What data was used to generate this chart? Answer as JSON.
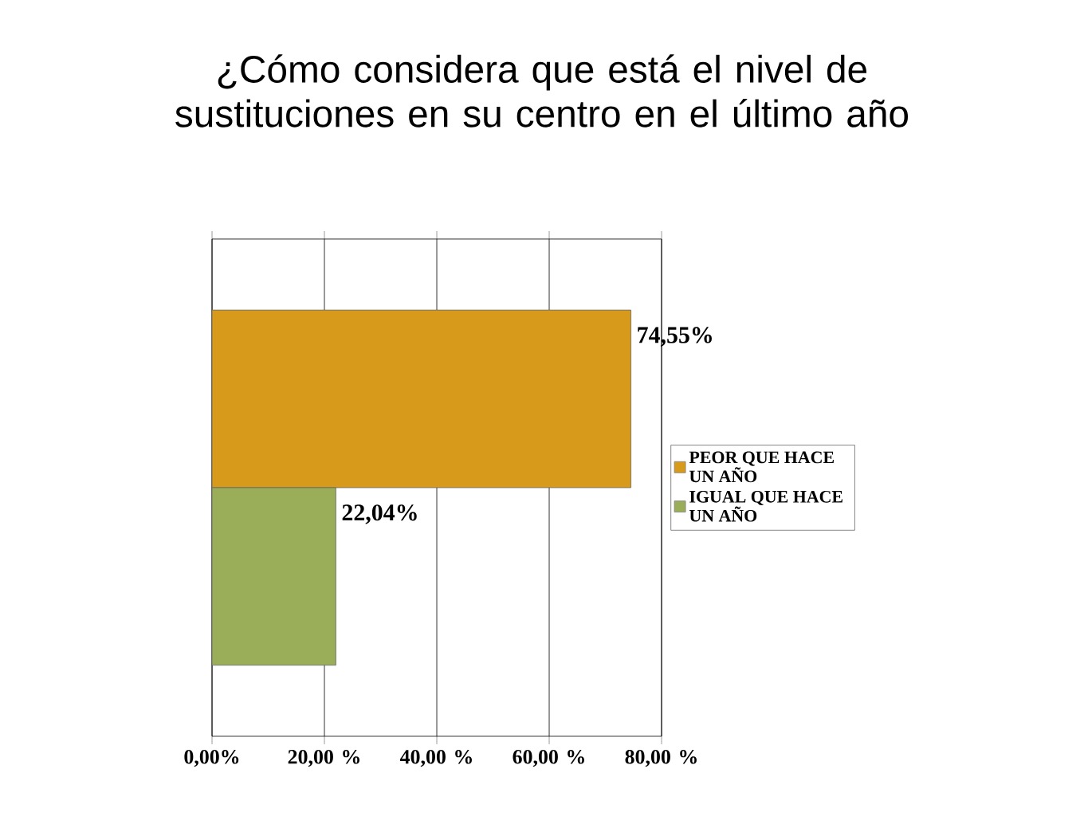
{
  "chart_data": {
    "type": "bar",
    "orientation": "horizontal",
    "title": "¿Cómo considera que está el nivel de sustituciones en su centro en el último año",
    "categories": [
      null
    ],
    "series": [
      {
        "name": "PEOR QUE HACE UN AÑO",
        "color": "#d89a1a",
        "values": [
          74.55
        ],
        "value_labels": [
          "74,55%"
        ]
      },
      {
        "name": "IGUAL QUE HACE UN AÑO",
        "color": "#9aae5a",
        "values": [
          22.04
        ],
        "value_labels": [
          "22,04%"
        ]
      }
    ],
    "xlim": [
      0,
      80
    ],
    "xticks": [
      {
        "value": 0,
        "label": "0,00%"
      },
      {
        "value": 20,
        "label": "20,00 %"
      },
      {
        "value": 40,
        "label": "40,00 %"
      },
      {
        "value": 60,
        "label": "60,00 %"
      },
      {
        "value": 80,
        "label": "80,00 %"
      }
    ],
    "grid": "x",
    "legend": "right"
  }
}
